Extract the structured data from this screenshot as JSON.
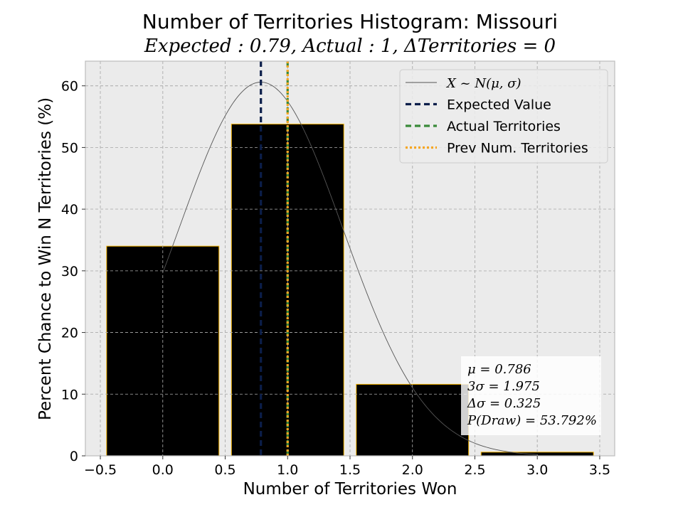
{
  "chart_data": {
    "type": "bar",
    "title": "Number of Territories Histogram: Missouri",
    "subtitle": "Expected : 0.79, Actual : 1, ΔTerritories = 0",
    "xlabel": "Number of Territories Won",
    "ylabel": "Percent Chance to Win N Territories (%)",
    "xlim": [
      -0.62,
      3.62
    ],
    "ylim": [
      0,
      64
    ],
    "xticks": [
      -0.5,
      0.0,
      0.5,
      1.0,
      1.5,
      2.0,
      2.5,
      3.0,
      3.5
    ],
    "xtick_labels": [
      "−0.5",
      "0.0",
      "0.5",
      "1.0",
      "1.5",
      "2.0",
      "2.5",
      "3.0",
      "3.5"
    ],
    "yticks": [
      0,
      10,
      20,
      30,
      40,
      50,
      60
    ],
    "ytick_labels": [
      "0",
      "10",
      "20",
      "30",
      "40",
      "50",
      "60"
    ],
    "grid": true,
    "bars": {
      "x": [
        0,
        1,
        2,
        3
      ],
      "values": [
        34.0,
        53.8,
        11.6,
        0.6
      ],
      "width": 0.9,
      "color": "#000000",
      "edgecolor": "#f5b400"
    },
    "normal_curve": {
      "mu": 0.786,
      "sigma": 0.658,
      "peak_percent": 60.6,
      "color": "#555555"
    },
    "vlines": [
      {
        "name": "Expected Value",
        "x": 0.786,
        "color": "#0b1e4a",
        "style": "dashed"
      },
      {
        "name": "Actual Territories",
        "x": 1.0,
        "color": "#3a8a3a",
        "style": "dashed"
      },
      {
        "name": "Prev Num. Territories",
        "x": 1.0,
        "color": "#f5a623",
        "style": "dotted"
      }
    ],
    "legend": {
      "position": "top-right",
      "entries": [
        {
          "label": "X ~ N(μ, σ)",
          "kind": "curve",
          "color": "#555555"
        },
        {
          "label": "Expected Value",
          "kind": "dashed",
          "color": "#0b1e4a"
        },
        {
          "label": "Actual Territories",
          "kind": "dashed",
          "color": "#3a8a3a"
        },
        {
          "label": "Prev Num. Territories",
          "kind": "dotted",
          "color": "#f5a623"
        }
      ]
    },
    "stats_box": {
      "position": "lower-right",
      "lines": [
        "μ = 0.786",
        "3σ = 1.975",
        "Δσ = 0.325",
        "P(Draw) = 53.792%"
      ]
    },
    "colors": {
      "plot_bg": "#ebebeb",
      "grid": "#b0b0b0",
      "frame": "#bcbcbc"
    }
  }
}
